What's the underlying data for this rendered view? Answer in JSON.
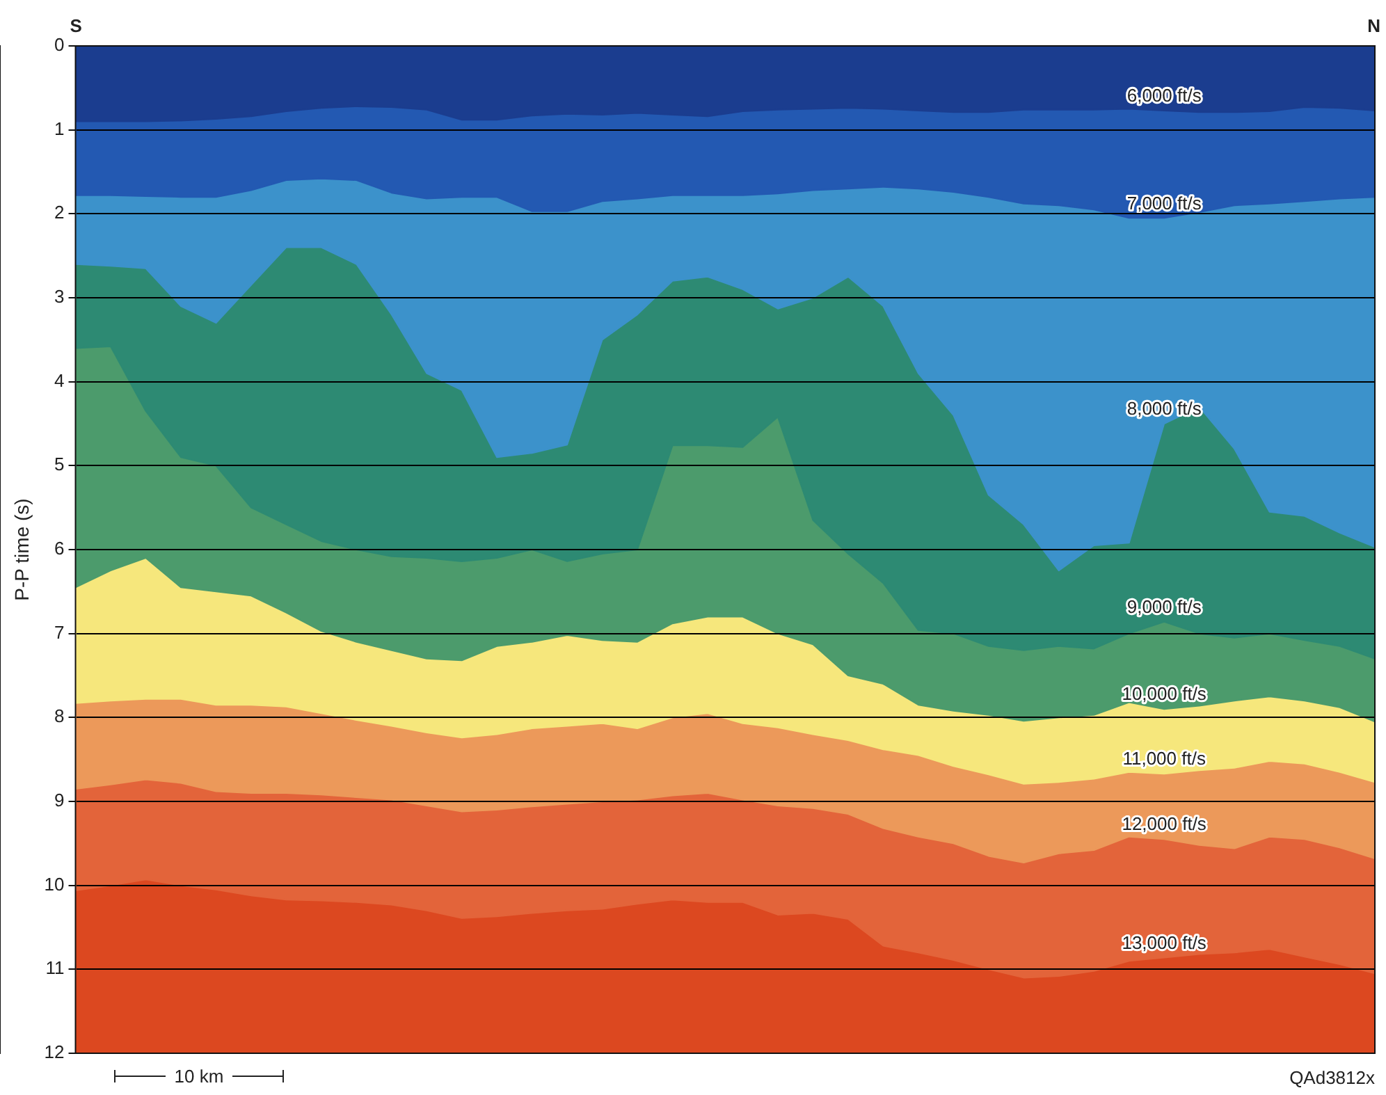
{
  "chart_data": {
    "type": "area",
    "ylabel": "P-P time (s)",
    "categories": [
      null,
      null,
      null,
      null,
      null,
      null,
      null,
      null,
      null,
      null,
      null,
      null,
      null,
      null,
      null,
      null,
      null,
      null,
      null,
      null,
      null,
      null,
      null,
      null,
      null,
      null,
      null,
      null,
      null,
      null,
      null,
      null,
      null,
      null,
      null,
      null,
      null,
      null
    ],
    "ylim": [
      12,
      0
    ],
    "yticks": [
      0,
      1,
      2,
      3,
      4,
      5,
      6,
      7,
      8,
      9,
      10,
      11,
      12
    ],
    "grid": "y",
    "legend": false,
    "annotations": [
      "S",
      "N",
      "10 km",
      "QAd3812x"
    ],
    "series": [
      {
        "name": "6,000 ft/s",
        "color": "#1b3d8f",
        "values": [
          0.9,
          0.9,
          0.9,
          0.89,
          0.87,
          0.84,
          0.78,
          0.74,
          0.72,
          0.73,
          0.76,
          0.88,
          0.88,
          0.83,
          0.81,
          0.82,
          0.8,
          0.82,
          0.84,
          0.78,
          0.76,
          0.75,
          0.74,
          0.75,
          0.77,
          0.79,
          0.79,
          0.76,
          0.76,
          0.76,
          0.75,
          0.77,
          0.79,
          0.79,
          0.78,
          0.73,
          0.74,
          0.77
        ]
      },
      {
        "name": "7,000 ft/s",
        "color": "#2359b2",
        "values": [
          1.78,
          1.78,
          1.79,
          1.8,
          1.8,
          1.72,
          1.6,
          1.58,
          1.6,
          1.75,
          1.82,
          1.8,
          1.8,
          1.97,
          1.97,
          1.85,
          1.82,
          1.78,
          1.78,
          1.78,
          1.76,
          1.72,
          1.7,
          1.68,
          1.7,
          1.74,
          1.8,
          1.88,
          1.9,
          1.95,
          2.05,
          2.05,
          1.98,
          1.9,
          1.88,
          1.85,
          1.82,
          1.8
        ]
      },
      {
        "name": "8,000 ft/s",
        "color": "#3c92cb",
        "values": [
          2.6,
          2.62,
          2.65,
          3.1,
          3.3,
          2.85,
          2.4,
          2.4,
          2.6,
          3.2,
          3.9,
          4.1,
          4.9,
          4.85,
          4.75,
          3.5,
          3.2,
          2.8,
          2.75,
          2.9,
          3.13,
          3.0,
          2.75,
          3.1,
          3.9,
          4.4,
          5.35,
          5.7,
          6.25,
          5.95,
          5.92,
          4.5,
          4.3,
          4.8,
          5.55,
          5.6,
          5.8,
          5.97
        ]
      },
      {
        "name": "9,000 ft/s",
        "color": "#2d8a73",
        "values": [
          3.6,
          3.58,
          4.35,
          4.9,
          5.0,
          5.5,
          5.7,
          5.9,
          6.0,
          6.08,
          6.1,
          6.14,
          6.1,
          6.0,
          6.14,
          6.05,
          6.0,
          4.76,
          4.76,
          4.78,
          4.42,
          5.65,
          6.05,
          6.4,
          6.96,
          7.0,
          7.15,
          7.2,
          7.15,
          7.18,
          7.0,
          6.86,
          7.0,
          7.05,
          7.0,
          7.08,
          7.15,
          7.3
        ]
      },
      {
        "name": "10,000 ft/s",
        "color": "#4c9b6c",
        "values": [
          6.45,
          6.25,
          6.1,
          6.45,
          6.5,
          6.55,
          6.75,
          6.97,
          7.1,
          7.2,
          7.3,
          7.32,
          7.15,
          7.1,
          7.02,
          7.08,
          7.1,
          6.88,
          6.8,
          6.8,
          7.0,
          7.13,
          7.5,
          7.6,
          7.85,
          7.92,
          7.97,
          8.04,
          8.0,
          7.97,
          7.82,
          7.9,
          7.86,
          7.8,
          7.75,
          7.8,
          7.88,
          8.05
        ]
      },
      {
        "name": "11,000 ft/s",
        "color": "#f6e77c",
        "values": [
          7.83,
          7.8,
          7.78,
          7.78,
          7.85,
          7.85,
          7.87,
          7.95,
          8.03,
          8.1,
          8.18,
          8.24,
          8.2,
          8.13,
          8.1,
          8.07,
          8.13,
          8.0,
          7.95,
          8.07,
          8.12,
          8.2,
          8.27,
          8.38,
          8.45,
          8.58,
          8.68,
          8.79,
          8.77,
          8.73,
          8.65,
          8.67,
          8.63,
          8.6,
          8.52,
          8.55,
          8.65,
          8.77
        ]
      },
      {
        "name": "12,000 ft/s",
        "color": "#ec995a",
        "values": [
          8.85,
          8.8,
          8.74,
          8.78,
          8.88,
          8.9,
          8.9,
          8.92,
          8.95,
          8.98,
          9.05,
          9.12,
          9.1,
          9.06,
          9.03,
          9.0,
          8.98,
          8.93,
          8.9,
          8.98,
          9.05,
          9.08,
          9.15,
          9.32,
          9.42,
          9.5,
          9.65,
          9.73,
          9.62,
          9.58,
          9.42,
          9.45,
          9.52,
          9.56,
          9.42,
          9.45,
          9.55,
          9.68
        ]
      },
      {
        "name": "13,000 ft/s",
        "color": "#e3643a",
        "values": [
          10.06,
          10.0,
          9.93,
          10.0,
          10.05,
          10.12,
          10.17,
          10.18,
          10.2,
          10.23,
          10.3,
          10.39,
          10.37,
          10.33,
          10.3,
          10.28,
          10.22,
          10.17,
          10.2,
          10.2,
          10.35,
          10.33,
          10.4,
          10.72,
          10.8,
          10.89,
          11.0,
          11.1,
          11.08,
          11.02,
          10.9,
          10.86,
          10.82,
          10.8,
          10.76,
          10.85,
          10.94,
          11.05
        ]
      },
      {
        "color": "#dc4820",
        "values": [
          12,
          12,
          12,
          12,
          12,
          12,
          12,
          12,
          12,
          12,
          12,
          12,
          12,
          12,
          12,
          12,
          12,
          12,
          12,
          12,
          12,
          12,
          12,
          12,
          12,
          12,
          12,
          12,
          12,
          12,
          12,
          12,
          12,
          12,
          12,
          12,
          12,
          12
        ]
      }
    ]
  }
}
